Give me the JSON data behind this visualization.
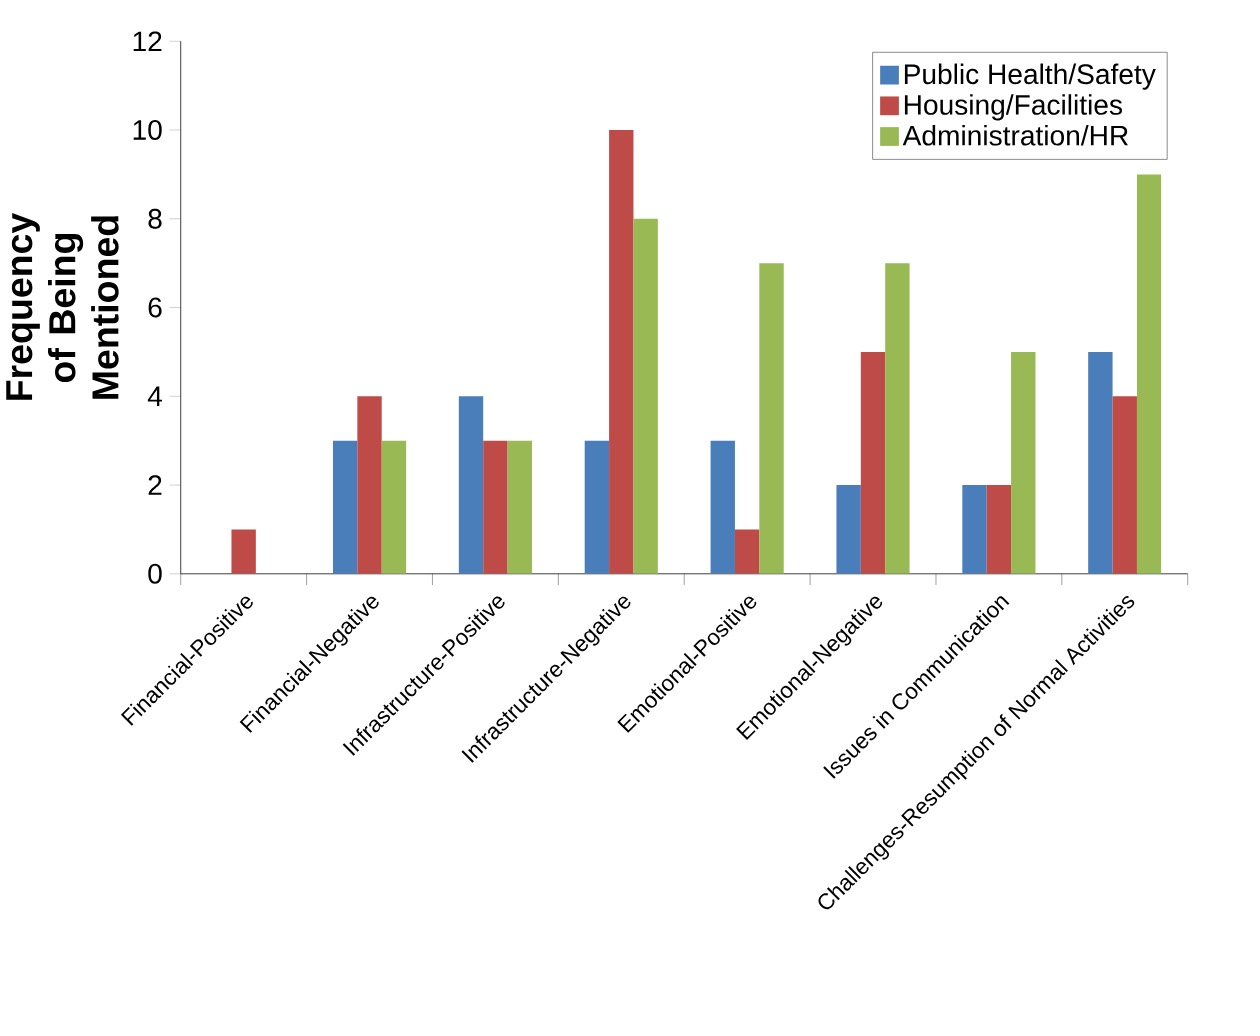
{
  "chart_data": {
    "type": "bar",
    "ylabel": "Frequency of Being Mentioned",
    "categories": [
      "Financial-Positive",
      "Financial-Negative",
      "Infrastructure-Positive",
      "Infrastructure-Negative",
      "Emotional-Positive",
      "Emotional-Negative",
      "Issues in Communication",
      "Challenges-Resumption of Normal Activities"
    ],
    "series": [
      {
        "name": "Public Health/Safety",
        "color": "#4a7ebb",
        "values": [
          0,
          3,
          4,
          3,
          3,
          2,
          2,
          5
        ]
      },
      {
        "name": "Housing/Facilities",
        "color": "#be4b48",
        "values": [
          1,
          4,
          3,
          10,
          1,
          5,
          2,
          4
        ]
      },
      {
        "name": "Administration/HR",
        "color": "#98b954",
        "values": [
          0,
          3,
          3,
          8,
          7,
          7,
          5,
          9
        ]
      }
    ],
    "ylim": [
      0,
      12
    ],
    "yticks": [
      0,
      2,
      4,
      6,
      8,
      10,
      12
    ],
    "legend": "top right",
    "grid": false
  }
}
